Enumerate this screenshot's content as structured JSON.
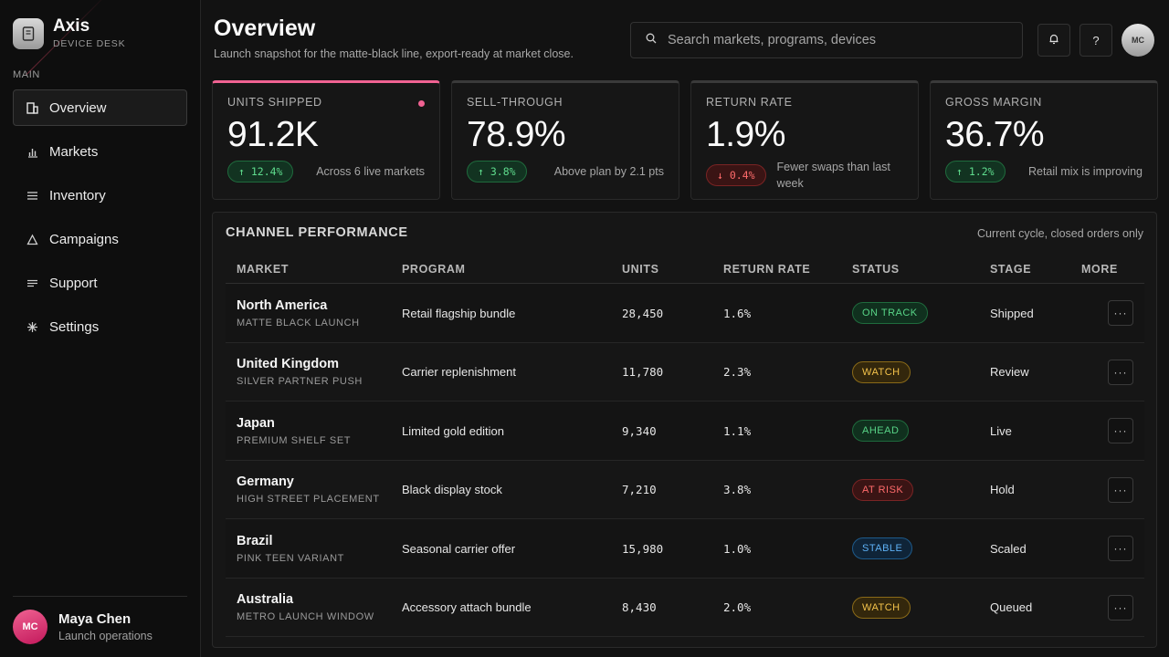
{
  "brand": {
    "name": "Axis",
    "subtitle": "DEVICE DESK",
    "icon": "device-icon"
  },
  "sidebar": {
    "section_label": "MAIN",
    "items": [
      {
        "label": "Overview",
        "icon": "overview-icon",
        "active": true
      },
      {
        "label": "Markets",
        "icon": "bar-chart-icon",
        "active": false
      },
      {
        "label": "Inventory",
        "icon": "list-icon",
        "active": false
      },
      {
        "label": "Campaigns",
        "icon": "triangle-icon",
        "active": false
      },
      {
        "label": "Support",
        "icon": "lines-icon",
        "active": false
      },
      {
        "label": "Settings",
        "icon": "asterisk-icon",
        "active": false
      }
    ],
    "profile": {
      "initials": "MC",
      "name": "Maya Chen",
      "role": "Launch operations"
    }
  },
  "header": {
    "title": "Overview",
    "subtitle": "Launch snapshot for the matte-black line, export-ready at market close.",
    "search_placeholder": "Search markets, programs, devices",
    "help_label": "?",
    "avatar_initials": "MC"
  },
  "metrics": [
    {
      "label": "UNITS SHIPPED",
      "value": "91.2K",
      "delta": "↑ 12.4%",
      "direction": "up",
      "note": "Across 6 live markets"
    },
    {
      "label": "SELL-THROUGH",
      "value": "78.9%",
      "delta": "↑ 3.8%",
      "direction": "up",
      "note": "Above plan by 2.1 pts"
    },
    {
      "label": "RETURN RATE",
      "value": "1.9%",
      "delta": "↓ 0.4%",
      "direction": "down",
      "note": "Fewer swaps than last week"
    },
    {
      "label": "GROSS MARGIN",
      "value": "36.7%",
      "delta": "↑ 1.2%",
      "direction": "up",
      "note": "Retail mix is improving"
    }
  ],
  "channel_table": {
    "title": "CHANNEL PERFORMANCE",
    "note": "Current cycle, closed orders only",
    "columns": [
      "MARKET",
      "PROGRAM",
      "UNITS",
      "RETURN RATE",
      "STATUS",
      "STAGE",
      "MORE"
    ],
    "rows": [
      {
        "market": "North America",
        "sub": "MATTE BLACK LAUNCH",
        "program": "Retail flagship bundle",
        "units": "28,450",
        "return_rate": "1.6%",
        "status": "ON TRACK",
        "status_color": "#58d487",
        "stage": "Shipped",
        "more": "···"
      },
      {
        "market": "United Kingdom",
        "sub": "SILVER PARTNER PUSH",
        "program": "Carrier replenishment",
        "units": "11,780",
        "return_rate": "2.3%",
        "status": "WATCH",
        "status_color": "#f3c24a",
        "stage": "Review",
        "more": "···"
      },
      {
        "market": "Japan",
        "sub": "PREMIUM SHELF SET",
        "program": "Limited gold edition",
        "units": "9,340",
        "return_rate": "1.1%",
        "status": "AHEAD",
        "status_color": "#58d487",
        "stage": "Live",
        "more": "···"
      },
      {
        "market": "Germany",
        "sub": "HIGH STREET PLACEMENT",
        "program": "Black display stock",
        "units": "7,210",
        "return_rate": "3.8%",
        "status": "AT RISK",
        "status_color": "#ff6b6b",
        "stage": "Hold",
        "more": "···"
      },
      {
        "market": "Brazil",
        "sub": "PINK TEEN VARIANT",
        "program": "Seasonal carrier offer",
        "units": "15,980",
        "return_rate": "1.0%",
        "status": "STABLE",
        "status_color": "#5eb1f5",
        "stage": "Scaled",
        "more": "···"
      },
      {
        "market": "Australia",
        "sub": "METRO LAUNCH WINDOW",
        "program": "Accessory attach bundle",
        "units": "8,430",
        "return_rate": "2.0%",
        "status": "WATCH",
        "status_color": "#f3c24a",
        "stage": "Queued",
        "more": "···"
      }
    ]
  }
}
